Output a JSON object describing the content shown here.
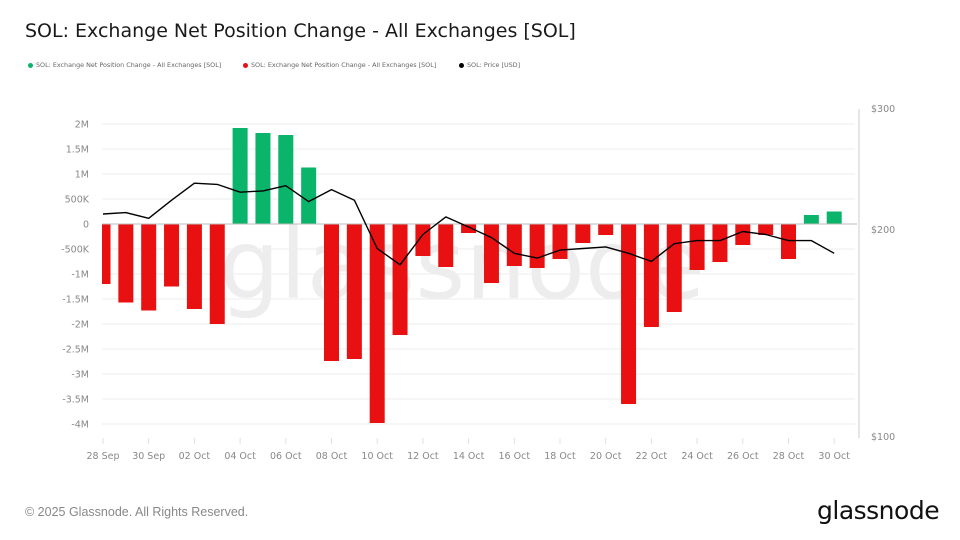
{
  "title": "SOL: Exchange Net Position Change - All Exchanges [SOL]",
  "legend": [
    {
      "label": "SOL: Exchange Net Position Change - All Exchanges [SOL]",
      "color": "#0bb46b"
    },
    {
      "label": "SOL: Exchange Net Position Change - All Exchanges [SOL]",
      "color": "#e81010"
    },
    {
      "label": "SOL: Price [USD]",
      "color": "#000000"
    }
  ],
  "footer": {
    "copyright": "© 2025 Glassnode. All Rights Reserved.",
    "logo": "glassnode"
  },
  "watermark": "glassnode",
  "chart_data": {
    "type": "bar",
    "title": "SOL: Exchange Net Position Change - All Exchanges [SOL]",
    "xlabel": "",
    "ylabel": "",
    "categories": [
      "28 Sep",
      "29 Sep",
      "30 Sep",
      "01 Oct",
      "02 Oct",
      "03 Oct",
      "04 Oct",
      "05 Oct",
      "06 Oct",
      "07 Oct",
      "08 Oct",
      "09 Oct",
      "10 Oct",
      "11 Oct",
      "12 Oct",
      "13 Oct",
      "14 Oct",
      "15 Oct",
      "16 Oct",
      "17 Oct",
      "18 Oct",
      "19 Oct",
      "20 Oct",
      "21 Oct",
      "22 Oct",
      "23 Oct",
      "24 Oct",
      "25 Oct",
      "26 Oct",
      "27 Oct",
      "28 Oct",
      "29 Oct",
      "30 Oct"
    ],
    "x_tick_labels": [
      "28 Sep",
      "30 Sep",
      "02 Oct",
      "04 Oct",
      "06 Oct",
      "08 Oct",
      "10 Oct",
      "12 Oct",
      "14 Oct",
      "16 Oct",
      "18 Oct",
      "20 Oct",
      "22 Oct",
      "24 Oct",
      "26 Oct",
      "28 Oct",
      "30 Oct"
    ],
    "series": [
      {
        "name": "SOL: Exchange Net Position Change - All Exchanges [SOL]",
        "type": "bar",
        "axis": "left",
        "positive_color": "#0bb46b",
        "negative_color": "#e81010",
        "values": [
          -1200000,
          -1570000,
          -1730000,
          -1250000,
          -1700000,
          -2000000,
          1920000,
          1820000,
          1780000,
          1130000,
          -2740000,
          -2700000,
          -3980000,
          -2220000,
          -640000,
          -860000,
          -180000,
          -1180000,
          -840000,
          -880000,
          -700000,
          -380000,
          -220000,
          -3600000,
          -2060000,
          -1760000,
          -920000,
          -760000,
          -420000,
          -220000,
          -700000,
          180000,
          250000
        ]
      },
      {
        "name": "SOL: Price [USD]",
        "type": "line",
        "axis": "right",
        "color": "#000000",
        "values": [
          211,
          212,
          208,
          221,
          234,
          233,
          227,
          228,
          232,
          220,
          229,
          221,
          188,
          178,
          197,
          209,
          202,
          195,
          185,
          182,
          187,
          188,
          189,
          185,
          180,
          191,
          193,
          193,
          199,
          197,
          193,
          193,
          185
        ]
      }
    ],
    "y_left": {
      "ticks": [
        2000000,
        1500000,
        1000000,
        500000,
        0,
        -500000,
        -1000000,
        -1500000,
        -2000000,
        -2500000,
        -3000000,
        -3500000,
        -4000000
      ],
      "tick_labels": [
        "2M",
        "1.5M",
        "1M",
        "500K",
        "0",
        "-500K",
        "-1M",
        "-1.5M",
        "-2M",
        "-2.5M",
        "-3M",
        "-3.5M",
        "-4M"
      ],
      "ylim": [
        -4300000,
        2300000
      ]
    },
    "y_right": {
      "scale": "log",
      "ticks": [
        300,
        200,
        100
      ],
      "tick_labels": [
        "$300",
        "$200",
        "$100"
      ],
      "ylim": [
        100,
        300
      ]
    },
    "grid": true,
    "legend_position": "top-left"
  }
}
